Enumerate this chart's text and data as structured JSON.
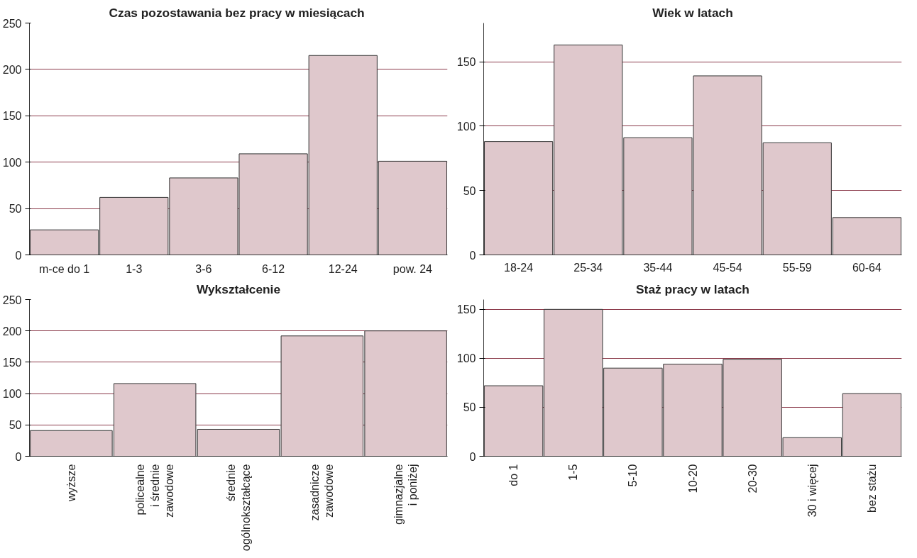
{
  "chart_data": [
    {
      "type": "bar",
      "title": "Czas pozostawania bez pracy  w miesiącach",
      "categories": [
        "m-ce do 1",
        "1-3",
        "3-6",
        "6-12",
        "12-24",
        "pow. 24"
      ],
      "values": [
        27,
        62,
        83,
        109,
        215,
        101
      ],
      "color": "#dfc8cc",
      "ylim": [
        0,
        250
      ],
      "yticks": [
        0,
        50,
        100,
        150,
        200,
        250
      ],
      "grid": "y"
    },
    {
      "type": "bar",
      "title": "Wiek w latach",
      "categories": [
        "18-24",
        "25-34",
        "35-44",
        "45-54",
        "55-59",
        "60-64"
      ],
      "values": [
        88,
        163,
        91,
        139,
        87,
        29
      ],
      "color": "#dfc8cc",
      "ylim": [
        0,
        180
      ],
      "yticks": [
        0,
        50,
        100,
        150
      ],
      "grid": "y"
    },
    {
      "type": "bar",
      "title": "Wykształcenie",
      "categories": [
        "wyższe",
        "policealne\ni średnie\nzawodowe",
        "średnie\nogólnokształcące",
        "zasadnicze\nzawodowe",
        "gimnazjalne\ni poniżej"
      ],
      "values": [
        41,
        116,
        43,
        192,
        200
      ],
      "color": "#dfc8cc",
      "ylim": [
        0,
        250
      ],
      "yticks": [
        0,
        50,
        100,
        150,
        200,
        250
      ],
      "grid": "y"
    },
    {
      "type": "bar",
      "title": "Staż pracy w latach",
      "categories": [
        "do 1",
        "1-5",
        "5-10",
        "10-20",
        "20-30",
        "30 i więcej",
        "bez stażu"
      ],
      "values": [
        72,
        150,
        90,
        94,
        99,
        19,
        64
      ],
      "color": "#dfc8cc",
      "ylim": [
        0,
        160
      ],
      "yticks": [
        0,
        50,
        100,
        150
      ],
      "grid": "y"
    }
  ]
}
